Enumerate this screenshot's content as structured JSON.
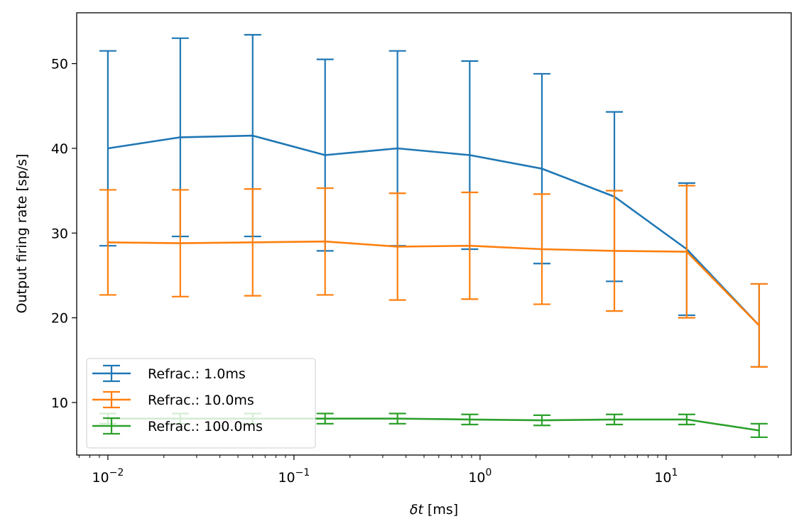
{
  "chart_data": {
    "type": "line",
    "x_scale": "log",
    "xlabel_symbol": "δt",
    "xlabel_unit": "[ms]",
    "ylabel": "Output firing rate [sp/s]",
    "xlim": [
      0.0068,
      47
    ],
    "ylim": [
      3.8,
      56
    ],
    "x_ticks": [
      {
        "value": 0.01,
        "mantissa": "10",
        "exponent": "−2"
      },
      {
        "value": 0.1,
        "mantissa": "10",
        "exponent": "−1"
      },
      {
        "value": 1,
        "mantissa": "10",
        "exponent": "0"
      },
      {
        "value": 10,
        "mantissa": "10",
        "exponent": "1"
      }
    ],
    "y_ticks": [
      {
        "value": 10,
        "label": "10"
      },
      {
        "value": 20,
        "label": "20"
      },
      {
        "value": 30,
        "label": "30"
      },
      {
        "value": 40,
        "label": "40"
      },
      {
        "value": 50,
        "label": "50"
      }
    ],
    "x": [
      0.01,
      0.0245,
      0.06,
      0.147,
      0.36,
      0.88,
      2.15,
      5.27,
      12.9,
      31.6
    ],
    "series": [
      {
        "name": "Refrac.: 1.0ms",
        "color": "#1f77b4",
        "y": [
          40.0,
          41.3,
          41.5,
          39.2,
          40.0,
          39.2,
          37.6,
          34.3,
          28.1,
          19.1
        ],
        "err": [
          11.5,
          11.7,
          11.9,
          11.3,
          11.5,
          11.1,
          11.2,
          10.0,
          7.8,
          4.9
        ]
      },
      {
        "name": "Refrac.: 10.0ms",
        "color": "#ff7f0e",
        "y": [
          28.9,
          28.8,
          28.9,
          29.0,
          28.4,
          28.5,
          28.1,
          27.9,
          27.8,
          19.1
        ],
        "err": [
          6.2,
          6.3,
          6.3,
          6.3,
          6.3,
          6.3,
          6.5,
          7.1,
          7.8,
          4.9
        ]
      },
      {
        "name": "Refrac.: 100.0ms",
        "color": "#2ca02c",
        "y": [
          8.1,
          8.1,
          8.1,
          8.1,
          8.1,
          8.0,
          7.9,
          8.0,
          8.0,
          6.7
        ],
        "err": [
          0.6,
          0.6,
          0.6,
          0.6,
          0.6,
          0.6,
          0.6,
          0.6,
          0.6,
          0.8
        ]
      }
    ],
    "legend_position": "lower-left",
    "grid": false
  }
}
